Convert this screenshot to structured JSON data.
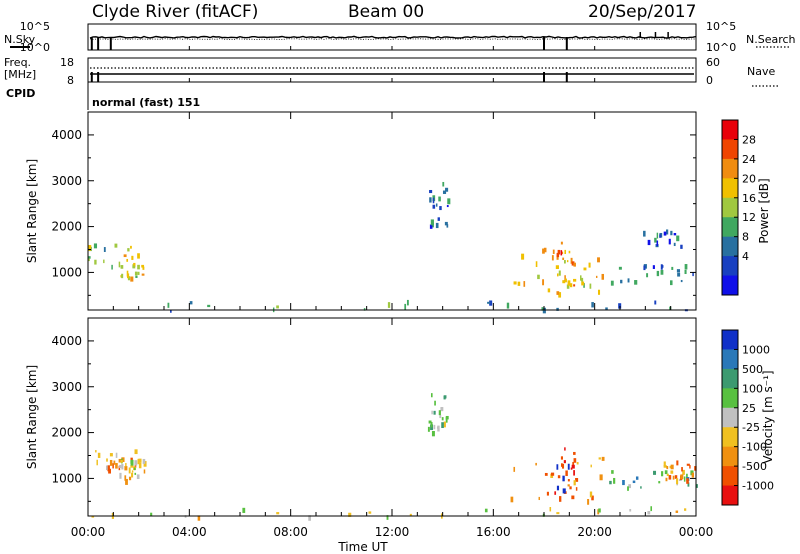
{
  "header": {
    "station": "Clyde River (fitACF)",
    "beam": "Beam 00",
    "date": "20/Sep/2017"
  },
  "aux_panels": {
    "nsky_label": "N.Sky",
    "nsearch_label": "N.Search",
    "freq_label": "Freq.",
    "freq_unit": "[MHz]",
    "nave_label": "Nave",
    "cpid_label": "CPID",
    "cpid_value": "normal (fast) 151",
    "noise_ticks": [
      "10^5",
      "10^0"
    ],
    "noise_ticks_right": [
      "10^5",
      "10^0"
    ],
    "freq_ticks": [
      "18",
      "8"
    ],
    "nave_ticks": [
      "60",
      "0"
    ]
  },
  "axes": {
    "ylabel": "Slant Range [km]",
    "xlabel": "Time UT",
    "yticks": [
      "4000",
      "3000",
      "2000",
      "1000"
    ],
    "xticks": [
      "00:00",
      "04:00",
      "08:00",
      "12:00",
      "16:00",
      "20:00",
      "00:00"
    ]
  },
  "power_scale": {
    "label": "Power [dB]",
    "ticks": [
      "28",
      "24",
      "20",
      "16",
      "12",
      "8",
      "4"
    ],
    "colors": [
      "#e8000a",
      "#f04500",
      "#f08c10",
      "#f0c000",
      "#a0c840",
      "#40a860",
      "#2870a0",
      "#1840c0",
      "#1010e8"
    ]
  },
  "velocity_scale": {
    "label": "Velocity [m s⁻¹]",
    "ticks": [
      "1000",
      "500",
      "100",
      "25",
      "-25",
      "-100",
      "-500",
      "-1000"
    ],
    "colors": [
      "#1030c8",
      "#2a78b8",
      "#3c9a70",
      "#58c040",
      "#c0c0c0",
      "#f0c020",
      "#f09010",
      "#f05000",
      "#e81010"
    ]
  },
  "chart_data": [
    {
      "type": "heatmap",
      "name": "Power",
      "xlabel": "Time UT",
      "ylabel": "Slant Range [km]",
      "xlim": [
        "00:00",
        "24:00"
      ],
      "ylim": [
        180,
        4500
      ],
      "colorbar_label": "Power [dB]",
      "colorbar_range": [
        0,
        30
      ],
      "regions": [
        {
          "t0": 0.0,
          "t1": 2.2,
          "r0": 1150,
          "r1": 1650,
          "value": 14
        },
        {
          "t0": 1.2,
          "t1": 2.2,
          "r0": 900,
          "r1": 1450,
          "value": 18
        },
        {
          "t0": 16.4,
          "t1": 20.5,
          "r0": 550,
          "r1": 1550,
          "value": 18
        },
        {
          "t0": 18.4,
          "t1": 19.2,
          "r0": 500,
          "r1": 1700,
          "value": 22
        },
        {
          "t0": 20.5,
          "t1": 24.0,
          "r0": 800,
          "r1": 1200,
          "value": 8
        },
        {
          "t0": 21.8,
          "t1": 24.0,
          "r0": 1600,
          "r1": 1950,
          "value": 6
        },
        {
          "t0": 13.4,
          "t1": 14.2,
          "r0": 2000,
          "r1": 3000,
          "value": 8
        },
        {
          "t0": 0.0,
          "t1": 24.0,
          "r0": 180,
          "r1": 400,
          "value": 10
        }
      ]
    },
    {
      "type": "heatmap",
      "name": "Velocity",
      "xlabel": "Time UT",
      "ylabel": "Slant Range [km]",
      "xlim": [
        "00:00",
        "24:00"
      ],
      "ylim": [
        180,
        4500
      ],
      "colorbar_label": "Velocity [m s⁻¹]",
      "colorbar_range": [
        -1000,
        1000
      ],
      "regions": [
        {
          "t0": 0.0,
          "t1": 2.2,
          "r0": 1150,
          "r1": 1650,
          "value": -300
        },
        {
          "t0": 1.2,
          "t1": 2.2,
          "r0": 900,
          "r1": 1450,
          "value": -100
        },
        {
          "t0": 16.4,
          "t1": 20.5,
          "r0": 550,
          "r1": 1550,
          "value": -500
        },
        {
          "t0": 18.4,
          "t1": 19.2,
          "r0": 500,
          "r1": 1700,
          "value": -900
        },
        {
          "t0": 20.5,
          "t1": 24.0,
          "r0": 800,
          "r1": 1200,
          "value": 300
        },
        {
          "t0": 22.5,
          "t1": 24.0,
          "r0": 1000,
          "r1": 1400,
          "value": -400
        },
        {
          "t0": 13.4,
          "t1": 14.2,
          "r0": 2000,
          "r1": 3000,
          "value": 150
        },
        {
          "t0": 0.0,
          "t1": 24.0,
          "r0": 180,
          "r1": 400,
          "value": -80
        }
      ]
    }
  ]
}
